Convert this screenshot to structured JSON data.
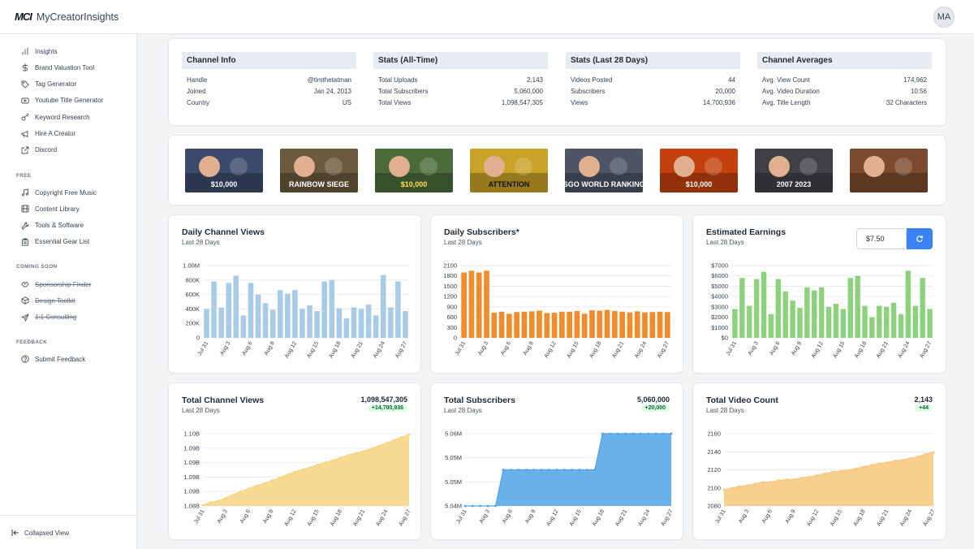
{
  "app": {
    "logo_mark": "MCI",
    "logo_text": "MyCreatorInsights",
    "avatar_initials": "MA"
  },
  "sidebar": {
    "main_items": [
      {
        "label": "Insights",
        "icon": "bar-chart-icon"
      },
      {
        "label": "Brand Valuation Tool",
        "icon": "dollar-icon"
      },
      {
        "label": "Tag Generator",
        "icon": "tag-icon"
      },
      {
        "label": "Youtube Title Generator",
        "icon": "video-icon"
      },
      {
        "label": "Keyword Research",
        "icon": "key-icon"
      },
      {
        "label": "Hire A Creator",
        "icon": "megaphone-icon"
      },
      {
        "label": "Discord",
        "icon": "external-link-icon"
      }
    ],
    "free_label": "FREE",
    "free_items": [
      {
        "label": "Copyright Free Music",
        "icon": "music-icon"
      },
      {
        "label": "Content Library",
        "icon": "film-icon"
      },
      {
        "label": "Tools & Software",
        "icon": "wrench-icon"
      },
      {
        "label": "Essential Gear List",
        "icon": "clipboard-icon"
      }
    ],
    "soon_label": "COMING SOON",
    "soon_items": [
      {
        "label": "Sponsorship Finder",
        "icon": "handshake-icon"
      },
      {
        "label": "Design Toolkit",
        "icon": "box-icon"
      },
      {
        "label": "1:1 Consulting",
        "icon": "send-icon"
      }
    ],
    "feedback_label": "FEEDBACK",
    "feedback_items": [
      {
        "label": "Submit Feedback",
        "icon": "help-circle-icon"
      }
    ],
    "collapsed_label": "Collapsed View"
  },
  "info": {
    "channel_info": {
      "title": "Channel Info",
      "rows": [
        [
          "Handle",
          "@timthetatman"
        ],
        [
          "Joined",
          "Jan 24, 2013"
        ],
        [
          "Country",
          "US"
        ]
      ]
    },
    "stats_all_time": {
      "title": "Stats (All-Time)",
      "rows": [
        [
          "Total Uploads",
          "2,143"
        ],
        [
          "Total Subscribers",
          "5,060,000"
        ],
        [
          "Total Views",
          "1,098,547,305"
        ]
      ]
    },
    "stats_28": {
      "title": "Stats (Last 28 Days)",
      "rows": [
        [
          "Videos Posted",
          "44"
        ],
        [
          "Subscribers",
          "20,000"
        ],
        [
          "Views",
          "14,700,936"
        ]
      ]
    },
    "averages": {
      "title": "Channel Averages",
      "rows": [
        [
          "Avg. View Count",
          "174,962"
        ],
        [
          "Avg. Video Duration",
          "10:56"
        ],
        [
          "Avg. Title Length",
          "32 Characters"
        ]
      ]
    }
  },
  "thumbnails": [
    {
      "text": "$10,000",
      "bg": "#3b4a6b",
      "fg": "#ffffff"
    },
    {
      "text": "RAINBOW SIEGE",
      "bg": "#6b5a3e",
      "fg": "#ffffff"
    },
    {
      "text": "$10,000",
      "bg": "#4a6b3a",
      "fg": "#ffe14d"
    },
    {
      "text": "ATTENTION",
      "bg": "#c9a227",
      "fg": "#111111"
    },
    {
      "text": "CSGO WORLD RANKINGS",
      "bg": "#4b5563",
      "fg": "#ffffff"
    },
    {
      "text": "$10,000",
      "bg": "#c2410c",
      "fg": "#ffffff"
    },
    {
      "text": "2007 2023",
      "bg": "#3f3f46",
      "fg": "#ffffff"
    },
    {
      "text": "",
      "bg": "#7c4a2d",
      "fg": "#ffffff"
    }
  ],
  "charts": {
    "daily_views": {
      "title": "Daily Channel Views",
      "subtitle": "Last 28 Days"
    },
    "daily_subs": {
      "title": "Daily Subscribers*",
      "subtitle": "Last 28 Days"
    },
    "earnings": {
      "title": "Estimated Earnings",
      "subtitle": "Last 28 Days",
      "rate_value": "$7.50",
      "refresh_icon": "refresh-icon"
    },
    "total_views": {
      "title": "Total Channel Views",
      "subtitle": "Last 28 Days",
      "total": "1,098,547,305",
      "delta": "+14,700,936"
    },
    "total_subs": {
      "title": "Total Subscribers",
      "subtitle": "Last 28 Days",
      "total": "5,060,000",
      "delta": "+20,000"
    },
    "total_videos": {
      "title": "Total Video Count",
      "subtitle": "Last 28 Days",
      "total": "2,143",
      "delta": "+44"
    }
  },
  "colors": {
    "views_bar": "#a8cbe7",
    "subs_bar": "#f08c2c",
    "earnings_bar": "#8cd27c",
    "views_area": "#f7d380",
    "subs_area": "#4da3e6",
    "videos_area": "#f7c77a",
    "accent": "#3b82f6"
  },
  "chart_data": [
    {
      "id": "daily_views",
      "type": "bar",
      "title": "Daily Channel Views",
      "x_tick_labels": [
        "Jul 31",
        "Aug 3",
        "Aug 6",
        "Aug 9",
        "Aug 12",
        "Aug 15",
        "Aug 18",
        "Aug 21",
        "Aug 24",
        "Aug 27"
      ],
      "values": [
        400000,
        780000,
        420000,
        760000,
        860000,
        310000,
        760000,
        600000,
        480000,
        390000,
        660000,
        610000,
        660000,
        400000,
        450000,
        370000,
        780000,
        800000,
        410000,
        270000,
        420000,
        400000,
        460000,
        310000,
        870000,
        420000,
        780000,
        370000
      ],
      "ylim": [
        0,
        1000000
      ],
      "y_ticks": [
        "0",
        "200K",
        "400K",
        "600K",
        "800K",
        "1.00M"
      ]
    },
    {
      "id": "daily_subs",
      "type": "bar",
      "title": "Daily Subscribers*",
      "x_tick_labels": [
        "Jul 31",
        "Aug 3",
        "Aug 6",
        "Aug 9",
        "Aug 12",
        "Aug 15",
        "Aug 18",
        "Aug 21",
        "Aug 24",
        "Aug 27"
      ],
      "values": [
        1900,
        1950,
        1900,
        1950,
        730,
        760,
        700,
        750,
        760,
        770,
        790,
        720,
        730,
        760,
        760,
        780,
        700,
        800,
        790,
        810,
        780,
        760,
        740,
        770,
        740,
        750,
        760,
        750
      ],
      "ylim": [
        0,
        2100
      ],
      "y_ticks": [
        "0",
        "300",
        "600",
        "900",
        "1200",
        "1500",
        "1800",
        "2100"
      ]
    },
    {
      "id": "earnings",
      "type": "bar",
      "title": "Estimated Earnings",
      "x_tick_labels": [
        "Jul 31",
        "Aug 3",
        "Aug 6",
        "Aug 9",
        "Aug 12",
        "Aug 15",
        "Aug 18",
        "Aug 21",
        "Aug 24",
        "Aug 27"
      ],
      "values": [
        2800,
        5800,
        3100,
        5700,
        6400,
        2300,
        5700,
        4500,
        3600,
        2900,
        4900,
        4600,
        4900,
        3000,
        3300,
        2800,
        5800,
        6000,
        3100,
        2000,
        3100,
        3000,
        3400,
        2300,
        6500,
        3100,
        5800,
        2800
      ],
      "ylim": [
        0,
        7000
      ],
      "y_ticks": [
        "$0",
        "$1000",
        "$2000",
        "$3000",
        "$4000",
        "$5000",
        "$6000",
        "$7000"
      ]
    },
    {
      "id": "total_views",
      "type": "area",
      "title": "Total Channel Views",
      "x_tick_labels": [
        "Jul 31",
        "Aug 3",
        "Aug 6",
        "Aug 9",
        "Aug 12",
        "Aug 15",
        "Aug 18",
        "Aug 21",
        "Aug 24",
        "Aug 27"
      ],
      "values_fraction": [
        0.01,
        0.05,
        0.07,
        0.11,
        0.16,
        0.2,
        0.24,
        0.28,
        0.31,
        0.35,
        0.39,
        0.43,
        0.47,
        0.5,
        0.53,
        0.57,
        0.6,
        0.63,
        0.67,
        0.7,
        0.73,
        0.76,
        0.79,
        0.83,
        0.87,
        0.91,
        0.95,
        0.99
      ],
      "y_ticks": [
        "1.08B",
        "1.09B",
        "1.09B",
        "1.09B",
        "1.09B",
        "1.10B"
      ]
    },
    {
      "id": "total_subs",
      "type": "area",
      "title": "Total Subscribers",
      "x_tick_labels": [
        "Jul 31",
        "Aug 3",
        "Aug 6",
        "Aug 9",
        "Aug 12",
        "Aug 15",
        "Aug 18",
        "Aug 21",
        "Aug 24",
        "Aug 27"
      ],
      "values": [
        5040000,
        5040000,
        5040000,
        5040000,
        5040000,
        5050000,
        5050000,
        5050000,
        5050000,
        5050000,
        5050000,
        5050000,
        5050000,
        5050000,
        5050000,
        5050000,
        5050000,
        5050000,
        5060000,
        5060000,
        5060000,
        5060000,
        5060000,
        5060000,
        5060000,
        5060000,
        5060000,
        5060000
      ],
      "ylim": [
        5040000,
        5060000
      ],
      "y_ticks": [
        "5.04M",
        "5.05M",
        "5.05M",
        "5.06M"
      ]
    },
    {
      "id": "total_videos",
      "type": "area",
      "title": "Total Video Count",
      "x_tick_labels": [
        "Jul 31",
        "Aug 3",
        "Aug 6",
        "Aug 9",
        "Aug 12",
        "Aug 15",
        "Aug 18",
        "Aug 21",
        "Aug 24",
        "Aug 27"
      ],
      "values": [
        2099,
        2101,
        2103,
        2104,
        2106,
        2108,
        2108,
        2110,
        2111,
        2111,
        2113,
        2114,
        2116,
        2118,
        2120,
        2121,
        2122,
        2124,
        2126,
        2128,
        2130,
        2131,
        2133,
        2134,
        2136,
        2138,
        2141,
        2143
      ],
      "ylim": [
        2080,
        2165
      ],
      "y_ticks": [
        "2080",
        "2100",
        "2120",
        "2140",
        "2160"
      ]
    }
  ]
}
